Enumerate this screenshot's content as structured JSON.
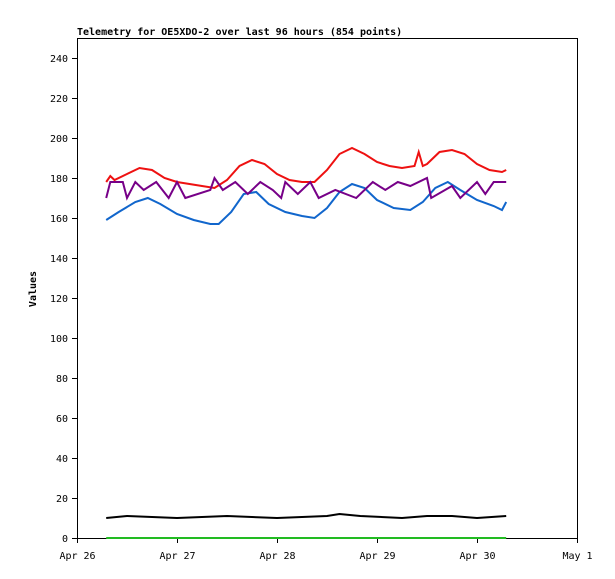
{
  "chart_data": {
    "type": "line",
    "title": "Telemetry for OE5XDO-2 over last 96 hours (854 points)",
    "xlabel": "",
    "ylabel": "Values",
    "ylim": [
      0,
      250
    ],
    "yticks": [
      0,
      20,
      40,
      60,
      80,
      100,
      120,
      140,
      160,
      180,
      200,
      220,
      240
    ],
    "xlim": [
      "2024-04-26",
      "2024-05-01"
    ],
    "xticks": [
      {
        "x": "2024-04-26",
        "label": "Apr 26"
      },
      {
        "x": "2024-04-27",
        "label": "Apr 27"
      },
      {
        "x": "2024-04-28",
        "label": "Apr 28"
      },
      {
        "x": "2024-04-29",
        "label": "Apr 29"
      },
      {
        "x": "2024-04-30",
        "label": "Apr 30"
      },
      {
        "x": "2024-05-01",
        "label": "May 1"
      }
    ],
    "grid": false,
    "legend": "none",
    "series": [
      {
        "color": "#ee1111",
        "points": [
          [
            "2024-04-26 07:00",
            178
          ],
          [
            "2024-04-26 08:00",
            181
          ],
          [
            "2024-04-26 09:00",
            179
          ],
          [
            "2024-04-26 12:00",
            182
          ],
          [
            "2024-04-26 15:00",
            185
          ],
          [
            "2024-04-26 18:00",
            184
          ],
          [
            "2024-04-26 21:00",
            180
          ],
          [
            "2024-04-27 00:00",
            178
          ],
          [
            "2024-04-27 03:00",
            177
          ],
          [
            "2024-04-27 06:00",
            176
          ],
          [
            "2024-04-27 09:00",
            175
          ],
          [
            "2024-04-27 12:00",
            179
          ],
          [
            "2024-04-27 15:00",
            186
          ],
          [
            "2024-04-27 18:00",
            189
          ],
          [
            "2024-04-27 21:00",
            187
          ],
          [
            "2024-04-28 00:00",
            182
          ],
          [
            "2024-04-28 03:00",
            179
          ],
          [
            "2024-04-28 06:00",
            178
          ],
          [
            "2024-04-28 09:00",
            178
          ],
          [
            "2024-04-28 12:00",
            184
          ],
          [
            "2024-04-28 15:00",
            192
          ],
          [
            "2024-04-28 18:00",
            195
          ],
          [
            "2024-04-28 21:00",
            192
          ],
          [
            "2024-04-29 00:00",
            188
          ],
          [
            "2024-04-29 03:00",
            186
          ],
          [
            "2024-04-29 06:00",
            185
          ],
          [
            "2024-04-29 09:00",
            186
          ],
          [
            "2024-04-29 10:00",
            193
          ],
          [
            "2024-04-29 11:00",
            186
          ],
          [
            "2024-04-29 12:00",
            187
          ],
          [
            "2024-04-29 15:00",
            193
          ],
          [
            "2024-04-29 18:00",
            194
          ],
          [
            "2024-04-29 21:00",
            192
          ],
          [
            "2024-04-30 00:00",
            187
          ],
          [
            "2024-04-30 03:00",
            184
          ],
          [
            "2024-04-30 06:00",
            183
          ],
          [
            "2024-04-30 07:00",
            184
          ]
        ]
      },
      {
        "color": "#1166cc",
        "points": [
          [
            "2024-04-26 07:00",
            159
          ],
          [
            "2024-04-26 10:00",
            163
          ],
          [
            "2024-04-26 14:00",
            168
          ],
          [
            "2024-04-26 17:00",
            170
          ],
          [
            "2024-04-26 20:00",
            167
          ],
          [
            "2024-04-27 00:00",
            162
          ],
          [
            "2024-04-27 04:00",
            159
          ],
          [
            "2024-04-27 08:00",
            157
          ],
          [
            "2024-04-27 10:00",
            157
          ],
          [
            "2024-04-27 13:00",
            163
          ],
          [
            "2024-04-27 16:00",
            172
          ],
          [
            "2024-04-27 19:00",
            173
          ],
          [
            "2024-04-27 22:00",
            167
          ],
          [
            "2024-04-28 02:00",
            163
          ],
          [
            "2024-04-28 06:00",
            161
          ],
          [
            "2024-04-28 09:00",
            160
          ],
          [
            "2024-04-28 12:00",
            165
          ],
          [
            "2024-04-28 15:00",
            173
          ],
          [
            "2024-04-28 18:00",
            177
          ],
          [
            "2024-04-28 21:00",
            175
          ],
          [
            "2024-04-29 00:00",
            169
          ],
          [
            "2024-04-29 04:00",
            165
          ],
          [
            "2024-04-29 08:00",
            164
          ],
          [
            "2024-04-29 11:00",
            168
          ],
          [
            "2024-04-29 14:00",
            175
          ],
          [
            "2024-04-29 17:00",
            178
          ],
          [
            "2024-04-29 20:00",
            174
          ],
          [
            "2024-04-30 00:00",
            169
          ],
          [
            "2024-04-30 04:00",
            166
          ],
          [
            "2024-04-30 06:00",
            164
          ],
          [
            "2024-04-30 07:00",
            168
          ]
        ]
      },
      {
        "color": "#770088",
        "points": [
          [
            "2024-04-26 07:00",
            170
          ],
          [
            "2024-04-26 08:00",
            178
          ],
          [
            "2024-04-26 11:00",
            178
          ],
          [
            "2024-04-26 12:00",
            170
          ],
          [
            "2024-04-26 14:00",
            178
          ],
          [
            "2024-04-26 16:00",
            174
          ],
          [
            "2024-04-26 19:00",
            178
          ],
          [
            "2024-04-26 22:00",
            170
          ],
          [
            "2024-04-27 00:00",
            178
          ],
          [
            "2024-04-27 02:00",
            170
          ],
          [
            "2024-04-27 08:00",
            174
          ],
          [
            "2024-04-27 09:00",
            180
          ],
          [
            "2024-04-27 11:00",
            174
          ],
          [
            "2024-04-27 14:00",
            178
          ],
          [
            "2024-04-27 17:00",
            172
          ],
          [
            "2024-04-27 20:00",
            178
          ],
          [
            "2024-04-27 23:00",
            174
          ],
          [
            "2024-04-28 01:00",
            170
          ],
          [
            "2024-04-28 02:00",
            178
          ],
          [
            "2024-04-28 05:00",
            172
          ],
          [
            "2024-04-28 08:00",
            178
          ],
          [
            "2024-04-28 10:00",
            170
          ],
          [
            "2024-04-28 14:00",
            174
          ],
          [
            "2024-04-28 19:00",
            170
          ],
          [
            "2024-04-28 23:00",
            178
          ],
          [
            "2024-04-29 02:00",
            174
          ],
          [
            "2024-04-29 05:00",
            178
          ],
          [
            "2024-04-29 08:00",
            176
          ],
          [
            "2024-04-29 12:00",
            180
          ],
          [
            "2024-04-29 13:00",
            170
          ],
          [
            "2024-04-29 18:00",
            176
          ],
          [
            "2024-04-29 20:00",
            170
          ],
          [
            "2024-04-30 00:00",
            178
          ],
          [
            "2024-04-30 02:00",
            172
          ],
          [
            "2024-04-30 04:00",
            178
          ],
          [
            "2024-04-30 07:00",
            178
          ]
        ]
      },
      {
        "color": "#000000",
        "points": [
          [
            "2024-04-26 07:00",
            10
          ],
          [
            "2024-04-26 12:00",
            11
          ],
          [
            "2024-04-27 00:00",
            10
          ],
          [
            "2024-04-27 12:00",
            11
          ],
          [
            "2024-04-28 00:00",
            10
          ],
          [
            "2024-04-28 12:00",
            11
          ],
          [
            "2024-04-28 15:00",
            12
          ],
          [
            "2024-04-28 20:00",
            11
          ],
          [
            "2024-04-29 06:00",
            10
          ],
          [
            "2024-04-29 12:00",
            11
          ],
          [
            "2024-04-29 18:00",
            11
          ],
          [
            "2024-04-30 00:00",
            10
          ],
          [
            "2024-04-30 07:00",
            11
          ]
        ]
      },
      {
        "color": "#22bb22",
        "points": [
          [
            "2024-04-26 07:00",
            0
          ],
          [
            "2024-04-30 07:00",
            0
          ]
        ]
      }
    ]
  }
}
